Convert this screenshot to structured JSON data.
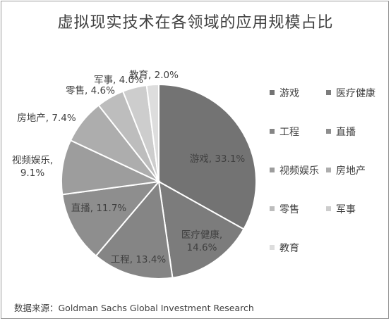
{
  "chart_data": {
    "type": "pie",
    "title": "虚拟现实技术在各领域的应用规模占比",
    "source": "数据来源：Goldman Sachs Global Investment Research",
    "unit": "%",
    "legend_position": "right",
    "slices": [
      {
        "label": "游戏",
        "value": 33.1,
        "display": "游戏, 33.1%",
        "color": "#737373"
      },
      {
        "label": "医疗健康",
        "value": 14.6,
        "display": "医疗健康,\n14.6%",
        "color": "#7c7c7c"
      },
      {
        "label": "工程",
        "value": 13.4,
        "display": "工程, 13.4%",
        "color": "#858585"
      },
      {
        "label": "直播",
        "value": 11.7,
        "display": "直播, 11.7%",
        "color": "#8e8e8e"
      },
      {
        "label": "视频娱乐",
        "value": 9.1,
        "display": "视频娱乐,\n9.1%",
        "color": "#9d9d9d"
      },
      {
        "label": "房地产",
        "value": 7.4,
        "display": "房地产, 7.4%",
        "color": "#adadad"
      },
      {
        "label": "零售",
        "value": 4.6,
        "display": "零售, 4.6%",
        "color": "#bdbdbd"
      },
      {
        "label": "军事",
        "value": 4.0,
        "display": "军事, 4.0%",
        "color": "#cdcdcd"
      },
      {
        "label": "教育",
        "value": 2.0,
        "display": "教育, 2.0%",
        "color": "#dddddd"
      }
    ]
  }
}
